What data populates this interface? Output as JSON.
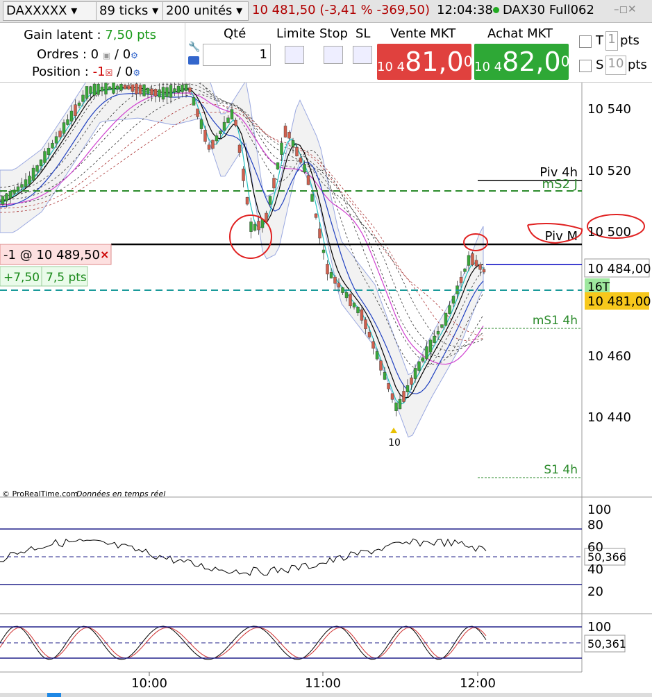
{
  "toolbar": {
    "instrument": "DAXXXXX",
    "interval": "89 ticks",
    "units": "200 unités",
    "quote": "10 481,50 (-3,41 % -369,50)",
    "time": "12:04:38",
    "window_title": "DAX30 Full062"
  },
  "order_bar": {
    "gain_label": "Gain latent :",
    "gain_value": "7,50 pts",
    "orders_label": "Ordres : 0",
    "orders_sep": "/ 0",
    "position_label": "Position :",
    "position_value": "-1",
    "position_sep": "/ 0",
    "qty_label": "Qté",
    "qty_value": "1",
    "limit_label": "Limite",
    "stop_label": "Stop",
    "sl_label": "SL",
    "sell_label": "Vente MKT",
    "sell_price": {
      "prefix": "10 4",
      "main": "81,0",
      "sup": "0"
    },
    "buy_label": "Achat MKT",
    "buy_price": {
      "prefix": "10 4",
      "main": "82,0",
      "sup": "0"
    },
    "t_label": "T",
    "t_value": "1",
    "t_unit": "pts",
    "s_label": "S",
    "s_value": "10",
    "s_unit": "pts"
  },
  "price_chart": {
    "price_ticks": [
      "10 540",
      "10 520",
      "10 500",
      "10 460",
      "10 440"
    ],
    "levels": [
      "Piv 4h",
      "mS2 J",
      "Piv M",
      "mS1 4h",
      "S1 4h"
    ],
    "position_tag": "-1 @ 10 489,50",
    "pnl_points": "+7,50",
    "pnl_label": "7,5 pts",
    "last_price": "10 484,00",
    "ticks_badge": "16T",
    "bid_price": "10 481,00",
    "alert_label": "10",
    "copyright": "© ProRealTime.com",
    "realtime": "Données en temps réel"
  },
  "rsi_panel": {
    "ticks": [
      "100",
      "80",
      "60",
      "40",
      "20"
    ],
    "value": "50,366"
  },
  "stoch_panel": {
    "ticks": [
      "100"
    ],
    "value": "50,361"
  },
  "time_axis": [
    "10:00",
    "11:00",
    "12:00"
  ]
}
